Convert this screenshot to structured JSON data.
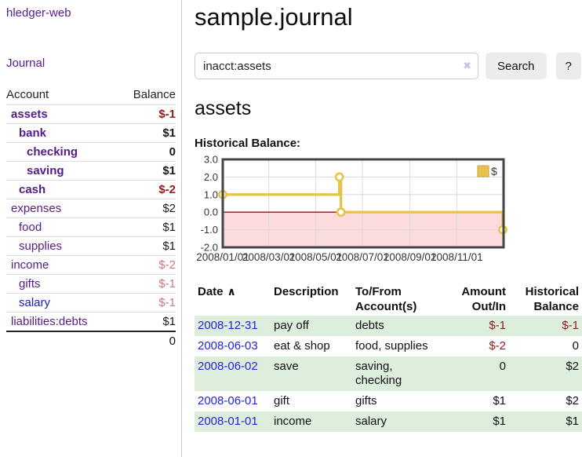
{
  "app": {
    "title": "hledger-web",
    "nav_journal": "Journal"
  },
  "icons": {
    "clear": "✖",
    "sort_asc": "∧"
  },
  "sidebar": {
    "header": {
      "account": "Account",
      "balance": "Balance"
    },
    "accounts": [
      {
        "name": "assets",
        "indent": 1,
        "bold": true,
        "link": "purple",
        "balance": "$-1",
        "bclass": "neg"
      },
      {
        "name": "bank",
        "indent": 2,
        "bold": true,
        "link": "purple",
        "balance": "$1",
        "bclass": "pos"
      },
      {
        "name": "checking",
        "indent": 3,
        "bold": true,
        "link": "purple",
        "balance": "0",
        "bclass": "pos"
      },
      {
        "name": "saving",
        "indent": 3,
        "bold": true,
        "link": "purple",
        "balance": "$1",
        "bclass": "pos"
      },
      {
        "name": "cash",
        "indent": 2,
        "bold": true,
        "link": "purple",
        "balance": "$-2",
        "bclass": "neg"
      },
      {
        "name": "expenses",
        "indent": 1,
        "bold": false,
        "link": "purple",
        "balance": "$2",
        "bclass": "pos"
      },
      {
        "name": "food",
        "indent": 2,
        "bold": false,
        "link": "purple",
        "balance": "$1",
        "bclass": "pos"
      },
      {
        "name": "supplies",
        "indent": 2,
        "bold": false,
        "link": "purple",
        "balance": "$1",
        "bclass": "pos"
      },
      {
        "name": "income",
        "indent": 1,
        "bold": false,
        "link": "purple",
        "balance": "$-2",
        "bclass": "rose"
      },
      {
        "name": "gifts",
        "indent": 2,
        "bold": false,
        "link": "purple",
        "balance": "$-1",
        "bclass": "rose"
      },
      {
        "name": "salary",
        "indent": 2,
        "bold": false,
        "link": "blue",
        "balance": "$-1",
        "bclass": "rose"
      },
      {
        "name": "liabilities:debts",
        "indent": 1,
        "bold": false,
        "link": "purple",
        "balance": "$1",
        "bclass": "pos"
      }
    ],
    "total": "0"
  },
  "header": {
    "title": "sample.journal"
  },
  "search": {
    "value": "inacct:assets",
    "button": "Search",
    "help": "?"
  },
  "account_page": {
    "title": "assets",
    "chart_label": "Historical Balance:"
  },
  "chart_data": {
    "type": "line",
    "title": "Historical Balance:",
    "series_label": "$",
    "line_color": "#e7c34c",
    "marker_fill": "#ffffff",
    "negative_region_fill": "#fbdbdb",
    "zero_line_color": "#8e1414",
    "grid_color": "#dadada",
    "border_color": "#454545",
    "ylim": [
      -2.0,
      3.0
    ],
    "yticks": [
      "3.0",
      "2.0",
      "1.0",
      "0.0",
      "-1.0",
      "-2.0"
    ],
    "xlim_days": [
      0,
      366
    ],
    "xticks": [
      {
        "day": 0,
        "label": "2008/01/01"
      },
      {
        "day": 60,
        "label": "2008/03/01"
      },
      {
        "day": 121,
        "label": "2008/05/01"
      },
      {
        "day": 182,
        "label": "2008/07/01"
      },
      {
        "day": 244,
        "label": "2008/09/01"
      },
      {
        "day": 305,
        "label": "2008/11/01"
      }
    ],
    "line_points_day_value": [
      [
        0,
        1
      ],
      [
        152,
        1
      ],
      [
        152,
        2
      ],
      [
        154,
        2
      ],
      [
        154,
        0
      ],
      [
        365,
        0
      ],
      [
        365,
        -1
      ]
    ],
    "marker_points_day_value": [
      [
        0,
        1
      ],
      [
        152,
        2
      ],
      [
        154,
        0
      ],
      [
        365,
        -1
      ]
    ],
    "balances_by_date": [
      {
        "date": "2008-01-01",
        "balance": 1
      },
      {
        "date": "2008-06-01",
        "balance": 2
      },
      {
        "date": "2008-06-02",
        "balance": 2
      },
      {
        "date": "2008-06-03",
        "balance": 0
      },
      {
        "date": "2008-12-31",
        "balance": -1
      }
    ]
  },
  "register": {
    "columns": {
      "date": "Date",
      "description": "Description",
      "accounts": "To/From Account(s)",
      "amount": "Amount Out/In",
      "balance": "Historical Balance"
    },
    "rows": [
      {
        "date": "2008-12-31",
        "description": "pay off",
        "accounts": "debts",
        "amount": "$-1",
        "amount_neg": true,
        "balance": "$-1",
        "balance_neg": true
      },
      {
        "date": "2008-06-03",
        "description": "eat & shop",
        "accounts": "food, supplies",
        "amount": "$-2",
        "amount_neg": true,
        "balance": "0",
        "balance_neg": false
      },
      {
        "date": "2008-06-02",
        "description": "save",
        "accounts": "saving,\nchecking",
        "amount": "0",
        "amount_neg": false,
        "balance": "$2",
        "balance_neg": false
      },
      {
        "date": "2008-06-01",
        "description": "gift",
        "accounts": "gifts",
        "amount": "$1",
        "amount_neg": false,
        "balance": "$2",
        "balance_neg": false
      },
      {
        "date": "2008-01-01",
        "description": "income",
        "accounts": "salary",
        "amount": "$1",
        "amount_neg": false,
        "balance": "$1",
        "balance_neg": false
      }
    ]
  }
}
